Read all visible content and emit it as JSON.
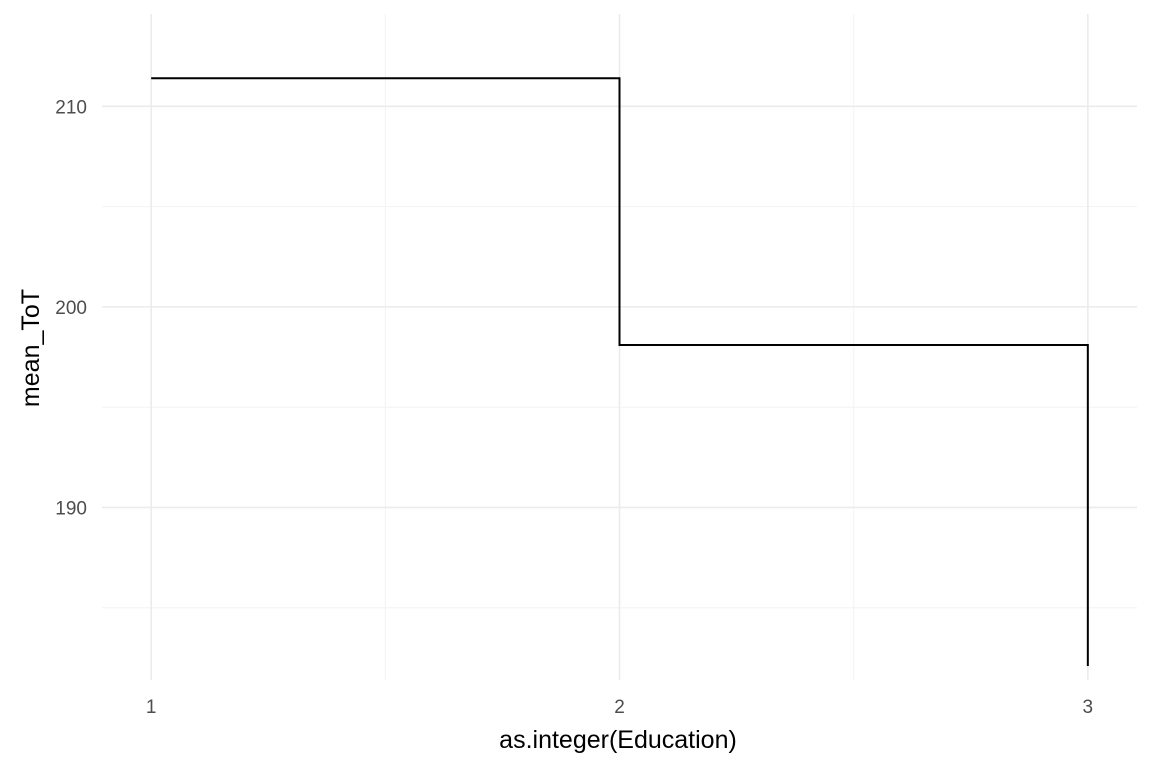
{
  "chart_data": {
    "type": "line",
    "step": "hv",
    "title": "",
    "xlabel": "as.integer(Education)",
    "ylabel": "mean_ToT",
    "x": [
      1,
      2,
      3
    ],
    "y": [
      211.4,
      198.1,
      182.1
    ],
    "xlim": [
      0.895,
      3.105
    ],
    "ylim": [
      181.4,
      214.6
    ],
    "x_ticks": [
      1,
      2,
      3
    ],
    "x_tick_labels": [
      "1",
      "2",
      "3"
    ],
    "y_ticks": [
      190,
      200,
      210
    ],
    "y_tick_labels": [
      "190",
      "200",
      "210"
    ],
    "x_minor": [
      1.5,
      2.5
    ],
    "y_minor": [
      185,
      195,
      205
    ],
    "grid": true,
    "legend": "none",
    "colors": {
      "line": "#000000",
      "grid_major": "#ebebeb",
      "grid_minor": "#f4f4f4",
      "tick_text": "#4d4d4d",
      "axis_title": "#000000",
      "background": "#ffffff"
    }
  }
}
